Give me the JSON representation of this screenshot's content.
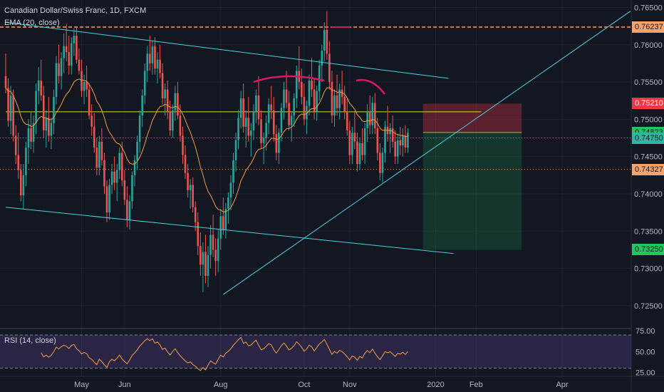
{
  "header": {
    "title": "Canadian Dollar/Swiss Franc, 1D, FXCM",
    "ema_label": "EMA (20, close)",
    "rsi_label": "RSI (14, close)"
  },
  "chart_data": {
    "type": "candlestick",
    "symbol": "CADCHF",
    "ylim": [
      0.7225,
      0.766
    ],
    "y_ticks": [
      "0.76500",
      "0.76000",
      "0.75500",
      "0.75000",
      "0.74500",
      "0.74000",
      "0.73500",
      "0.73000",
      "0.72500"
    ],
    "y_tick_values": [
      0.765,
      0.76,
      0.755,
      0.75,
      0.745,
      0.74,
      0.735,
      0.73,
      0.725
    ],
    "x_ticks": [
      "May",
      "Jun",
      "Aug",
      "Oct",
      "Nov",
      "2020",
      "Feb",
      "Apr"
    ],
    "x_tick_index": [
      30,
      47,
      85,
      118,
      136,
      170,
      186,
      220
    ],
    "price_tags": [
      {
        "label": "0.76237",
        "value": 0.76237,
        "color": "#f5a26b"
      },
      {
        "label": "0.75210",
        "value": 0.7521,
        "color": "#f23645"
      },
      {
        "label": "0.74823",
        "value": 0.74823,
        "color": "#22c55e"
      },
      {
        "label": "0.74750",
        "value": 0.7475,
        "color": "#2fb7a3"
      },
      {
        "label": "0.74327",
        "value": 0.74327,
        "color": "#f5a26b"
      },
      {
        "label": "0.73250",
        "value": 0.7325,
        "color": "#22c55e"
      }
    ],
    "horizontal_levels": [
      {
        "value": 0.76237,
        "style": "dashed",
        "color": "#f5a26b"
      },
      {
        "value": 0.74327,
        "style": "dotted",
        "color": "#f5a26b"
      },
      {
        "value": 0.7475,
        "style": "dotted",
        "color": "#2fb7a3"
      },
      {
        "value": 0.751,
        "style": "solid",
        "color": "#cddc39",
        "from_index": 0,
        "to_index": 188
      }
    ],
    "trendlines": [
      {
        "from": [
          0,
          0.763
        ],
        "to": [
          175,
          0.7555
        ],
        "color": "#4dd0e1"
      },
      {
        "from": [
          0,
          0.7382
        ],
        "to": [
          177,
          0.732
        ],
        "color": "#4dd0e1"
      },
      {
        "from": [
          86,
          0.7265
        ],
        "to": [
          247,
          0.7645
        ],
        "color": "#4dd0e1"
      }
    ],
    "position": {
      "entry": 0.74823,
      "stop": 0.7521,
      "target": 0.7325,
      "from_index": 165,
      "to_index": 204
    },
    "rsi": {
      "ylim": [
        22,
        76
      ],
      "ticks": [
        "75.00",
        "50.00",
        "25.00"
      ],
      "tick_values": [
        75,
        50,
        25
      ],
      "bands": [
        70,
        30
      ]
    },
    "bars": [
      [
        0.7558,
        0.7588,
        0.7535,
        0.7542
      ],
      [
        0.7542,
        0.7555,
        0.749,
        0.7498
      ],
      [
        0.7498,
        0.7545,
        0.748,
        0.7532
      ],
      [
        0.7532,
        0.754,
        0.747,
        0.7478
      ],
      [
        0.7478,
        0.7492,
        0.744,
        0.7452
      ],
      [
        0.7452,
        0.7482,
        0.742,
        0.7432
      ],
      [
        0.7432,
        0.744,
        0.739,
        0.7398
      ],
      [
        0.7398,
        0.744,
        0.738,
        0.7425
      ],
      [
        0.7425,
        0.747,
        0.741,
        0.7462
      ],
      [
        0.7462,
        0.75,
        0.744,
        0.7488
      ],
      [
        0.7488,
        0.751,
        0.746,
        0.747
      ],
      [
        0.747,
        0.7505,
        0.7455,
        0.7495
      ],
      [
        0.7495,
        0.7548,
        0.748,
        0.7538
      ],
      [
        0.7538,
        0.757,
        0.752,
        0.7552
      ],
      [
        0.7552,
        0.758,
        0.7525,
        0.7532
      ],
      [
        0.7532,
        0.7545,
        0.7475,
        0.7485
      ],
      [
        0.7485,
        0.7512,
        0.7462,
        0.7502
      ],
      [
        0.7502,
        0.753,
        0.747,
        0.7478
      ],
      [
        0.7478,
        0.7502,
        0.746,
        0.7495
      ],
      [
        0.7495,
        0.754,
        0.748,
        0.753
      ],
      [
        0.753,
        0.7585,
        0.752,
        0.7575
      ],
      [
        0.7575,
        0.76,
        0.7548,
        0.7558
      ],
      [
        0.7558,
        0.759,
        0.754,
        0.7582
      ],
      [
        0.7582,
        0.7615,
        0.7562,
        0.7598
      ],
      [
        0.7598,
        0.7628,
        0.7578,
        0.759
      ],
      [
        0.759,
        0.7612,
        0.756,
        0.7572
      ],
      [
        0.7572,
        0.761,
        0.756,
        0.7602
      ],
      [
        0.7602,
        0.7622,
        0.7585,
        0.7612
      ],
      [
        0.7612,
        0.7625,
        0.7575,
        0.758
      ],
      [
        0.758,
        0.7595,
        0.756,
        0.7565
      ],
      [
        0.7565,
        0.758,
        0.753,
        0.7538
      ],
      [
        0.7538,
        0.756,
        0.752,
        0.755
      ],
      [
        0.755,
        0.7572,
        0.753,
        0.754
      ],
      [
        0.754,
        0.7548,
        0.75,
        0.7505
      ],
      [
        0.7505,
        0.752,
        0.7478,
        0.749
      ],
      [
        0.749,
        0.7508,
        0.7455,
        0.7462
      ],
      [
        0.7462,
        0.7475,
        0.7425,
        0.7435
      ],
      [
        0.7435,
        0.7478,
        0.7425,
        0.747
      ],
      [
        0.747,
        0.7488,
        0.7438,
        0.7445
      ],
      [
        0.7445,
        0.7455,
        0.74,
        0.741
      ],
      [
        0.741,
        0.7418,
        0.7362,
        0.7375
      ],
      [
        0.7375,
        0.742,
        0.7365,
        0.7412
      ],
      [
        0.7412,
        0.744,
        0.74,
        0.743
      ],
      [
        0.743,
        0.745,
        0.7405,
        0.7415
      ],
      [
        0.7415,
        0.744,
        0.739,
        0.7432
      ],
      [
        0.7432,
        0.7462,
        0.742,
        0.7455
      ],
      [
        0.7455,
        0.747,
        0.741,
        0.7418
      ],
      [
        0.7418,
        0.7432,
        0.7385,
        0.7392
      ],
      [
        0.7392,
        0.741,
        0.7355,
        0.7365
      ],
      [
        0.7365,
        0.7398,
        0.7352,
        0.739
      ],
      [
        0.739,
        0.743,
        0.738,
        0.7425
      ],
      [
        0.7425,
        0.7452,
        0.741,
        0.7445
      ],
      [
        0.7445,
        0.7478,
        0.7432,
        0.747
      ],
      [
        0.747,
        0.7512,
        0.7455,
        0.7505
      ],
      [
        0.7505,
        0.754,
        0.749,
        0.7532
      ],
      [
        0.7532,
        0.7575,
        0.752,
        0.7565
      ],
      [
        0.7565,
        0.7598,
        0.755,
        0.7588
      ],
      [
        0.7588,
        0.7612,
        0.7565,
        0.7575
      ],
      [
        0.7575,
        0.7605,
        0.756,
        0.7598
      ],
      [
        0.7598,
        0.761,
        0.756,
        0.7568
      ],
      [
        0.7568,
        0.759,
        0.7548,
        0.758
      ],
      [
        0.758,
        0.76,
        0.7555,
        0.7562
      ],
      [
        0.7562,
        0.7575,
        0.752,
        0.7528
      ],
      [
        0.7528,
        0.7548,
        0.7505,
        0.754
      ],
      [
        0.754,
        0.7552,
        0.75,
        0.751
      ],
      [
        0.751,
        0.7525,
        0.7478,
        0.7485
      ],
      [
        0.7485,
        0.752,
        0.7475,
        0.7512
      ],
      [
        0.7512,
        0.7545,
        0.7498,
        0.7535
      ],
      [
        0.7535,
        0.755,
        0.75,
        0.7505
      ],
      [
        0.7505,
        0.752,
        0.747,
        0.7478
      ],
      [
        0.7478,
        0.749,
        0.744,
        0.7452
      ],
      [
        0.7452,
        0.7465,
        0.742,
        0.7428
      ],
      [
        0.7428,
        0.744,
        0.7395,
        0.7405
      ],
      [
        0.7405,
        0.742,
        0.738,
        0.7412
      ],
      [
        0.7412,
        0.7422,
        0.7375,
        0.7382
      ],
      [
        0.7382,
        0.739,
        0.735,
        0.7362
      ],
      [
        0.7362,
        0.7375,
        0.7318,
        0.733
      ],
      [
        0.733,
        0.7348,
        0.729,
        0.7305
      ],
      [
        0.7305,
        0.7335,
        0.7268,
        0.7322
      ],
      [
        0.7322,
        0.7345,
        0.728,
        0.729
      ],
      [
        0.729,
        0.733,
        0.7275,
        0.7318
      ],
      [
        0.7318,
        0.7358,
        0.73,
        0.7345
      ],
      [
        0.7345,
        0.7372,
        0.7315,
        0.7325
      ],
      [
        0.7325,
        0.734,
        0.729,
        0.731
      ],
      [
        0.731,
        0.7352,
        0.7295,
        0.734
      ],
      [
        0.734,
        0.738,
        0.7325,
        0.737
      ],
      [
        0.737,
        0.7395,
        0.7345,
        0.7352
      ],
      [
        0.7352,
        0.7388,
        0.734,
        0.738
      ],
      [
        0.738,
        0.7402,
        0.736,
        0.7395
      ],
      [
        0.7395,
        0.7425,
        0.7378,
        0.7415
      ],
      [
        0.7415,
        0.7455,
        0.74,
        0.7445
      ],
      [
        0.7445,
        0.7482,
        0.743,
        0.7472
      ],
      [
        0.7472,
        0.7512,
        0.746,
        0.7502
      ],
      [
        0.7502,
        0.7538,
        0.7488,
        0.7528
      ],
      [
        0.7528,
        0.7548,
        0.7482,
        0.749
      ],
      [
        0.749,
        0.7512,
        0.7462,
        0.7502
      ],
      [
        0.7502,
        0.753,
        0.747,
        0.7478
      ],
      [
        0.7478,
        0.7495,
        0.745,
        0.7485
      ],
      [
        0.7485,
        0.752,
        0.7472,
        0.751
      ],
      [
        0.751,
        0.754,
        0.7495,
        0.7532
      ],
      [
        0.7532,
        0.7558,
        0.7492,
        0.75
      ],
      [
        0.75,
        0.7512,
        0.746,
        0.7468
      ],
      [
        0.7468,
        0.7482,
        0.744,
        0.7475
      ],
      [
        0.7475,
        0.7505,
        0.7458,
        0.7495
      ],
      [
        0.7495,
        0.7528,
        0.748,
        0.752
      ],
      [
        0.752,
        0.7545,
        0.75,
        0.7512
      ],
      [
        0.7512,
        0.753,
        0.747,
        0.748
      ],
      [
        0.748,
        0.7492,
        0.7445,
        0.7455
      ],
      [
        0.7455,
        0.7488,
        0.744,
        0.7482
      ],
      [
        0.7482,
        0.7522,
        0.747,
        0.7515
      ],
      [
        0.7515,
        0.755,
        0.75,
        0.754
      ],
      [
        0.754,
        0.7565,
        0.7515,
        0.7522
      ],
      [
        0.7522,
        0.7538,
        0.7485,
        0.7492
      ],
      [
        0.7492,
        0.751,
        0.747,
        0.7505
      ],
      [
        0.7505,
        0.7535,
        0.749,
        0.7528
      ],
      [
        0.7528,
        0.7572,
        0.7515,
        0.7565
      ],
      [
        0.7565,
        0.7598,
        0.754,
        0.755
      ],
      [
        0.755,
        0.7568,
        0.752,
        0.753
      ],
      [
        0.753,
        0.7548,
        0.7492,
        0.75
      ],
      [
        0.75,
        0.7525,
        0.748,
        0.7518
      ],
      [
        0.7518,
        0.756,
        0.7505,
        0.7552
      ],
      [
        0.7552,
        0.7582,
        0.753,
        0.754
      ],
      [
        0.754,
        0.7555,
        0.75,
        0.751
      ],
      [
        0.751,
        0.7545,
        0.7498,
        0.7538
      ],
      [
        0.7538,
        0.758,
        0.7525,
        0.7572
      ],
      [
        0.7572,
        0.76,
        0.755,
        0.7592
      ],
      [
        0.7592,
        0.763,
        0.7578,
        0.762
      ],
      [
        0.762,
        0.7645,
        0.758,
        0.7588
      ],
      [
        0.7588,
        0.7605,
        0.754,
        0.755
      ],
      [
        0.755,
        0.7565,
        0.7495,
        0.7505
      ],
      [
        0.7505,
        0.754,
        0.749,
        0.7532
      ],
      [
        0.7532,
        0.756,
        0.7505,
        0.7515
      ],
      [
        0.7515,
        0.7548,
        0.75,
        0.754
      ],
      [
        0.754,
        0.7565,
        0.752,
        0.753
      ],
      [
        0.753,
        0.7545,
        0.75,
        0.751
      ],
      [
        0.751,
        0.7528,
        0.7478,
        0.7485
      ],
      [
        0.7485,
        0.7498,
        0.744,
        0.7452
      ],
      [
        0.7452,
        0.749,
        0.744,
        0.7482
      ],
      [
        0.7482,
        0.751,
        0.746,
        0.747
      ],
      [
        0.747,
        0.7482,
        0.743,
        0.744
      ],
      [
        0.744,
        0.7475,
        0.7432,
        0.7468
      ],
      [
        0.7468,
        0.7488,
        0.7445,
        0.7452
      ],
      [
        0.7452,
        0.7495,
        0.744,
        0.7488
      ],
      [
        0.7488,
        0.752,
        0.747,
        0.751
      ],
      [
        0.751,
        0.7532,
        0.748,
        0.7492
      ],
      [
        0.7492,
        0.753,
        0.748,
        0.7522
      ],
      [
        0.7522,
        0.7535,
        0.748,
        0.7488
      ],
      [
        0.7488,
        0.7502,
        0.7445,
        0.7455
      ],
      [
        0.7455,
        0.7468,
        0.7418,
        0.7428
      ],
      [
        0.7428,
        0.7462,
        0.7415,
        0.7455
      ],
      [
        0.7455,
        0.7498,
        0.7442,
        0.749
      ],
      [
        0.749,
        0.7518,
        0.747,
        0.748
      ],
      [
        0.748,
        0.7495,
        0.7455,
        0.7488
      ],
      [
        0.7488,
        0.7505,
        0.7462,
        0.747
      ],
      [
        0.747,
        0.7485,
        0.744,
        0.745
      ],
      [
        0.745,
        0.748,
        0.744,
        0.7472
      ],
      [
        0.7472,
        0.749,
        0.7452,
        0.7465
      ],
      [
        0.7465,
        0.7488,
        0.745,
        0.7478
      ],
      [
        0.7478,
        0.7492,
        0.7455,
        0.7462
      ],
      [
        0.7462,
        0.7488,
        0.7455,
        0.7482
      ]
    ]
  }
}
